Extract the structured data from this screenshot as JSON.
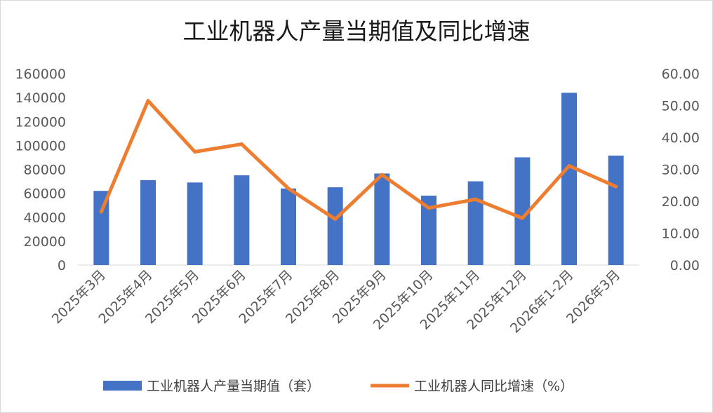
{
  "chart_data": {
    "type": "bar+line",
    "title": "工业机器人产量当期值及同比增速",
    "categories": [
      "2025年3月",
      "2025年4月",
      "2025年5月",
      "2025年6月",
      "2025年7月",
      "2025年8月",
      "2025年9月",
      "2025年10月",
      "2025年11月",
      "2025年12月",
      "2026年1-2月",
      "2026年3月"
    ],
    "series": [
      {
        "name": "工业机器人产量当期值（套）",
        "type": "bar",
        "axis": "left",
        "color": "#4472c4",
        "values": [
          62000,
          71000,
          69000,
          75000,
          64000,
          65000,
          76500,
          58000,
          70000,
          90000,
          144000,
          91500
        ]
      },
      {
        "name": "工业机器人同比增速（%）",
        "type": "line",
        "axis": "right",
        "color": "#ed7d31",
        "values": [
          16.7,
          51.5,
          35.5,
          37.9,
          24.0,
          14.4,
          28.3,
          17.9,
          20.6,
          14.7,
          31.1,
          24.6
        ]
      }
    ],
    "y_left": {
      "min": 0,
      "max": 160000,
      "step": 20000,
      "tick_labels": [
        "0",
        "20000",
        "40000",
        "60000",
        "80000",
        "100000",
        "120000",
        "140000",
        "160000"
      ]
    },
    "y_right": {
      "min": 0,
      "max": 60,
      "step": 10,
      "tick_labels": [
        "0.00",
        "10.00",
        "20.00",
        "30.00",
        "40.00",
        "50.00",
        "60.00"
      ]
    },
    "grid": false,
    "legend": "bottom"
  }
}
